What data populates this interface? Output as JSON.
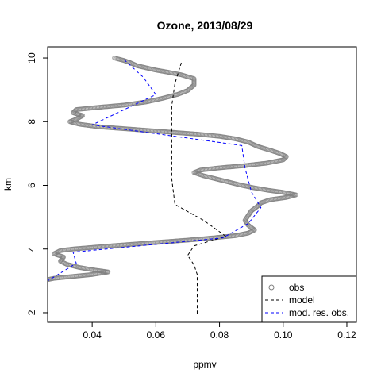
{
  "chart_data": {
    "type": "line",
    "title": "Ozone, 2013/08/29",
    "xlabel": "ppmv",
    "ylabel": "km",
    "xlim": [
      0.026,
      0.123
    ],
    "ylim": [
      1.7,
      10.35
    ],
    "xticks": [
      0.04,
      0.06,
      0.08,
      0.1,
      0.12
    ],
    "xtick_labels": [
      "0.04",
      "0.06",
      "0.08",
      "0.10",
      "0.12"
    ],
    "yticks": [
      2,
      4,
      6,
      8,
      10
    ],
    "ytick_labels": [
      "2",
      "4",
      "6",
      "8",
      "10"
    ],
    "grid": false,
    "legend_position": "bottom-right",
    "series": [
      {
        "name": "obs",
        "style": "points",
        "color": "#808080",
        "points": [
          [
            0.047,
            10.0
          ],
          [
            0.05,
            9.92
          ],
          [
            0.052,
            9.85
          ],
          [
            0.054,
            9.76
          ],
          [
            0.057,
            9.69
          ],
          [
            0.06,
            9.62
          ],
          [
            0.064,
            9.55
          ],
          [
            0.068,
            9.47
          ],
          [
            0.072,
            9.35
          ],
          [
            0.072,
            9.15
          ],
          [
            0.07,
            8.98
          ],
          [
            0.067,
            8.86
          ],
          [
            0.062,
            8.73
          ],
          [
            0.057,
            8.62
          ],
          [
            0.05,
            8.52
          ],
          [
            0.042,
            8.45
          ],
          [
            0.035,
            8.38
          ],
          [
            0.034,
            8.28
          ],
          [
            0.037,
            8.19
          ],
          [
            0.035,
            8.08
          ],
          [
            0.033,
            8.0
          ],
          [
            0.036,
            7.92
          ],
          [
            0.042,
            7.84
          ],
          [
            0.05,
            7.78
          ],
          [
            0.058,
            7.72
          ],
          [
            0.066,
            7.66
          ],
          [
            0.074,
            7.6
          ],
          [
            0.08,
            7.54
          ],
          [
            0.085,
            7.46
          ],
          [
            0.089,
            7.36
          ],
          [
            0.092,
            7.22
          ],
          [
            0.096,
            7.1
          ],
          [
            0.099,
            7.0
          ],
          [
            0.101,
            6.9
          ],
          [
            0.1,
            6.8
          ],
          [
            0.095,
            6.7
          ],
          [
            0.088,
            6.62
          ],
          [
            0.08,
            6.55
          ],
          [
            0.074,
            6.48
          ],
          [
            0.072,
            6.4
          ],
          [
            0.075,
            6.3
          ],
          [
            0.079,
            6.2
          ],
          [
            0.083,
            6.1
          ],
          [
            0.087,
            6.0
          ],
          [
            0.091,
            5.92
          ],
          [
            0.095,
            5.85
          ],
          [
            0.1,
            5.78
          ],
          [
            0.104,
            5.7
          ],
          [
            0.101,
            5.62
          ],
          [
            0.096,
            5.55
          ],
          [
            0.093,
            5.45
          ],
          [
            0.092,
            5.35
          ],
          [
            0.09,
            5.2
          ],
          [
            0.089,
            5.05
          ],
          [
            0.088,
            4.9
          ],
          [
            0.089,
            4.75
          ],
          [
            0.091,
            4.6
          ],
          [
            0.089,
            4.5
          ],
          [
            0.085,
            4.42
          ],
          [
            0.078,
            4.35
          ],
          [
            0.07,
            4.28
          ],
          [
            0.062,
            4.22
          ],
          [
            0.054,
            4.16
          ],
          [
            0.046,
            4.1
          ],
          [
            0.04,
            4.05
          ],
          [
            0.034,
            4.0
          ],
          [
            0.03,
            3.95
          ],
          [
            0.028,
            3.85
          ],
          [
            0.031,
            3.75
          ],
          [
            0.03,
            3.62
          ],
          [
            0.032,
            3.52
          ],
          [
            0.036,
            3.42
          ],
          [
            0.04,
            3.35
          ],
          [
            0.045,
            3.28
          ],
          [
            0.04,
            3.2
          ],
          [
            0.034,
            3.14
          ],
          [
            0.028,
            3.08
          ],
          [
            0.025,
            3.02
          ]
        ]
      },
      {
        "name": "model",
        "style": "dashed",
        "color": "#000000",
        "points": [
          [
            0.068,
            9.85
          ],
          [
            0.066,
            9.2
          ],
          [
            0.065,
            8.5
          ],
          [
            0.065,
            7.6
          ],
          [
            0.065,
            7.0
          ],
          [
            0.065,
            6.2
          ],
          [
            0.066,
            5.4
          ],
          [
            0.075,
            4.9
          ],
          [
            0.082,
            4.4
          ],
          [
            0.072,
            4.1
          ],
          [
            0.07,
            3.8
          ],
          [
            0.072,
            3.5
          ],
          [
            0.073,
            3.2
          ],
          [
            0.073,
            2.6
          ],
          [
            0.073,
            1.95
          ]
        ]
      },
      {
        "name": "mod. res. obs.",
        "style": "dashed",
        "color": "#0000ff",
        "points": [
          [
            0.05,
            9.95
          ],
          [
            0.056,
            9.4
          ],
          [
            0.06,
            8.85
          ],
          [
            0.04,
            7.9
          ],
          [
            0.087,
            7.25
          ],
          [
            0.088,
            6.55
          ],
          [
            0.09,
            5.8
          ],
          [
            0.093,
            5.3
          ],
          [
            0.089,
            4.8
          ],
          [
            0.081,
            4.35
          ],
          [
            0.034,
            3.9
          ],
          [
            0.035,
            3.55
          ],
          [
            0.026,
            3.0
          ]
        ]
      }
    ]
  }
}
